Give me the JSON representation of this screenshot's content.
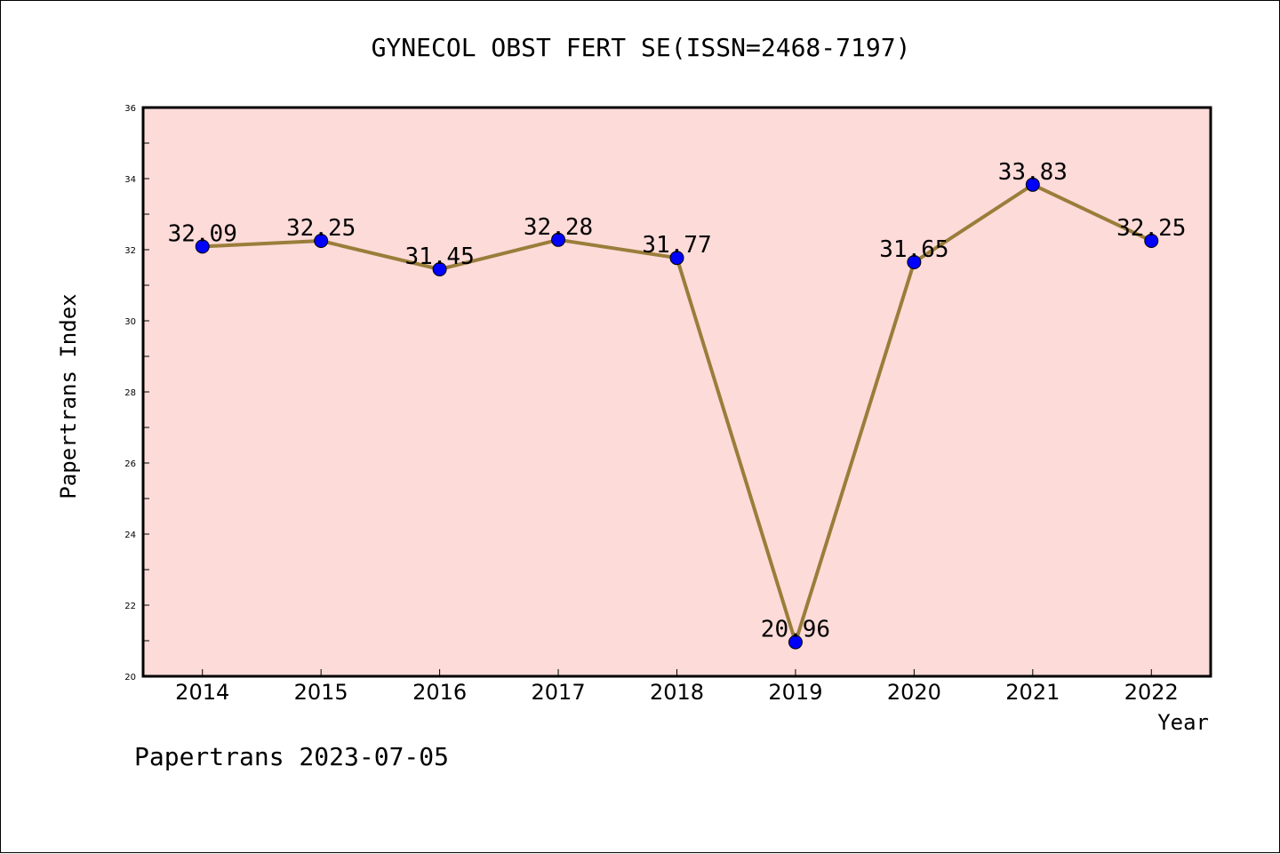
{
  "chart_data": {
    "type": "line",
    "title": "GYNECOL OBST FERT SE(ISSN=2468-7197)",
    "xlabel": "Year",
    "ylabel": "Papertrans Index",
    "categories": [
      "2014",
      "2015",
      "2016",
      "2017",
      "2018",
      "2019",
      "2020",
      "2021",
      "2022"
    ],
    "series": [
      {
        "values": [
          32.09,
          32.25,
          31.45,
          32.28,
          31.77,
          20.96,
          31.65,
          33.83,
          32.25
        ],
        "labels": [
          "32.09",
          "32.25",
          "31.45",
          "32.28",
          "31.77",
          "20.96",
          "31.65",
          "33.83",
          "32.25"
        ]
      }
    ],
    "ylim": [
      20,
      36
    ],
    "yticks": [
      "20",
      "22",
      "24",
      "26",
      "28",
      "30",
      "32",
      "34",
      "36"
    ],
    "grid": false,
    "colors": {
      "plot_background": "#fddbd9",
      "line": "#9a7d3a",
      "marker": "#0000ff"
    }
  },
  "footer": "Papertrans 2023-07-05"
}
